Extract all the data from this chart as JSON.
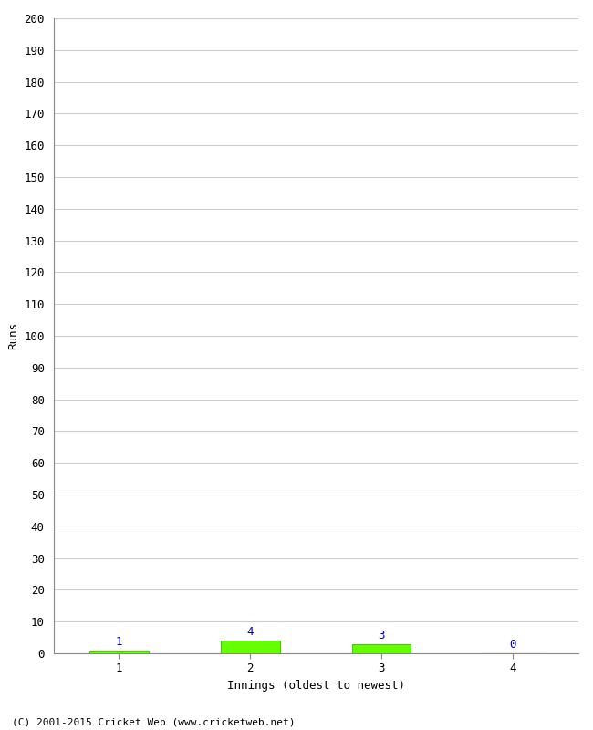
{
  "categories": [
    1,
    2,
    3,
    4
  ],
  "values": [
    1,
    4,
    3,
    0
  ],
  "bar_color": "#66ff00",
  "bar_edge_color": "#44cc00",
  "label_color": "#0000cc",
  "xlabel": "Innings (oldest to newest)",
  "ylabel": "Runs",
  "ylim": [
    0,
    200
  ],
  "yticks": [
    0,
    10,
    20,
    30,
    40,
    50,
    60,
    70,
    80,
    90,
    100,
    110,
    120,
    130,
    140,
    150,
    160,
    170,
    180,
    190,
    200
  ],
  "xticks": [
    1,
    2,
    3,
    4
  ],
  "background_color": "#ffffff",
  "grid_color": "#cccccc",
  "footer": "(C) 2001-2015 Cricket Web (www.cricketweb.net)"
}
